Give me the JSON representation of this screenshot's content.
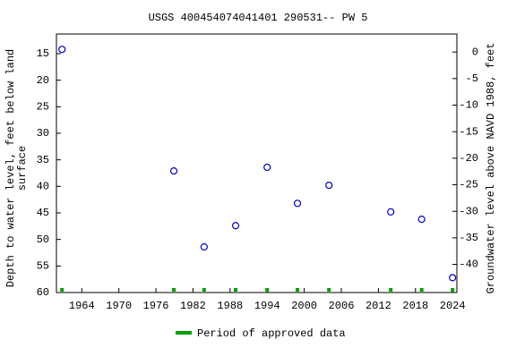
{
  "chart_data": {
    "type": "scatter",
    "title": "USGS 400454074041401 290531-- PW 5",
    "ylabel": [
      "Depth to water level, feet below land",
      "surface"
    ],
    "y2label": "Groundwater level above NAVD 1988, feet",
    "series": [
      {
        "name": "Depth to water level",
        "color": "#0000cc",
        "x": [
          1960.8,
          1978.9,
          1983.8,
          1988.9,
          1994.0,
          1998.9,
          2004.0,
          2014.0,
          2019.0,
          2024.0
        ],
        "values": [
          14.2,
          37.1,
          51.4,
          47.4,
          36.4,
          43.2,
          39.8,
          44.8,
          46.2,
          57.2
        ]
      }
    ],
    "approved": {
      "label": "Period of approved data",
      "color": "#00a000"
    },
    "xlim": [
      1959.9,
      2024.7
    ],
    "xticks": [
      1964,
      1970,
      1976,
      1982,
      1988,
      1994,
      2000,
      2006,
      2012,
      2018,
      2024
    ],
    "ylim": [
      60,
      11.3
    ],
    "yticks": [
      15,
      20,
      25,
      30,
      35,
      40,
      45,
      50,
      55,
      60
    ],
    "y2lim": [
      -45.3,
      3.4
    ],
    "y2ticks": [
      0,
      -5,
      -10,
      -15,
      -20,
      -25,
      -30,
      -35,
      -40
    ]
  }
}
